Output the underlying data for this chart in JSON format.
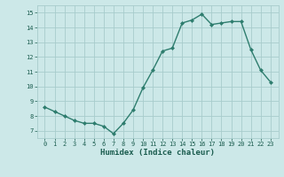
{
  "x": [
    0,
    1,
    2,
    3,
    4,
    5,
    6,
    7,
    8,
    9,
    10,
    11,
    12,
    13,
    14,
    15,
    16,
    17,
    18,
    19,
    20,
    21,
    22,
    23
  ],
  "y": [
    8.6,
    8.3,
    8.0,
    7.7,
    7.5,
    7.5,
    7.3,
    6.8,
    7.5,
    8.4,
    9.9,
    11.1,
    12.4,
    12.6,
    14.3,
    14.5,
    14.9,
    14.2,
    14.3,
    14.4,
    14.4,
    12.5,
    11.1,
    10.3
  ],
  "xlabel": "Humidex (Indice chaleur)",
  "ylim_min": 6.5,
  "ylim_max": 15.5,
  "xlim_min": -0.8,
  "xlim_max": 23.8,
  "yticks": [
    7,
    8,
    9,
    10,
    11,
    12,
    13,
    14,
    15
  ],
  "xticks": [
    0,
    1,
    2,
    3,
    4,
    5,
    6,
    7,
    8,
    9,
    10,
    11,
    12,
    13,
    14,
    15,
    16,
    17,
    18,
    19,
    20,
    21,
    22,
    23
  ],
  "line_color": "#2e7d6e",
  "marker_color": "#2e7d6e",
  "bg_color": "#cce8e8",
  "grid_color": "#a8cccc",
  "tick_label_color": "#1a5c4e",
  "xlabel_color": "#1a5c4e",
  "marker": "D",
  "marker_size": 2.0,
  "line_width": 1.0,
  "tick_fontsize": 5.0,
  "xlabel_fontsize": 6.5
}
